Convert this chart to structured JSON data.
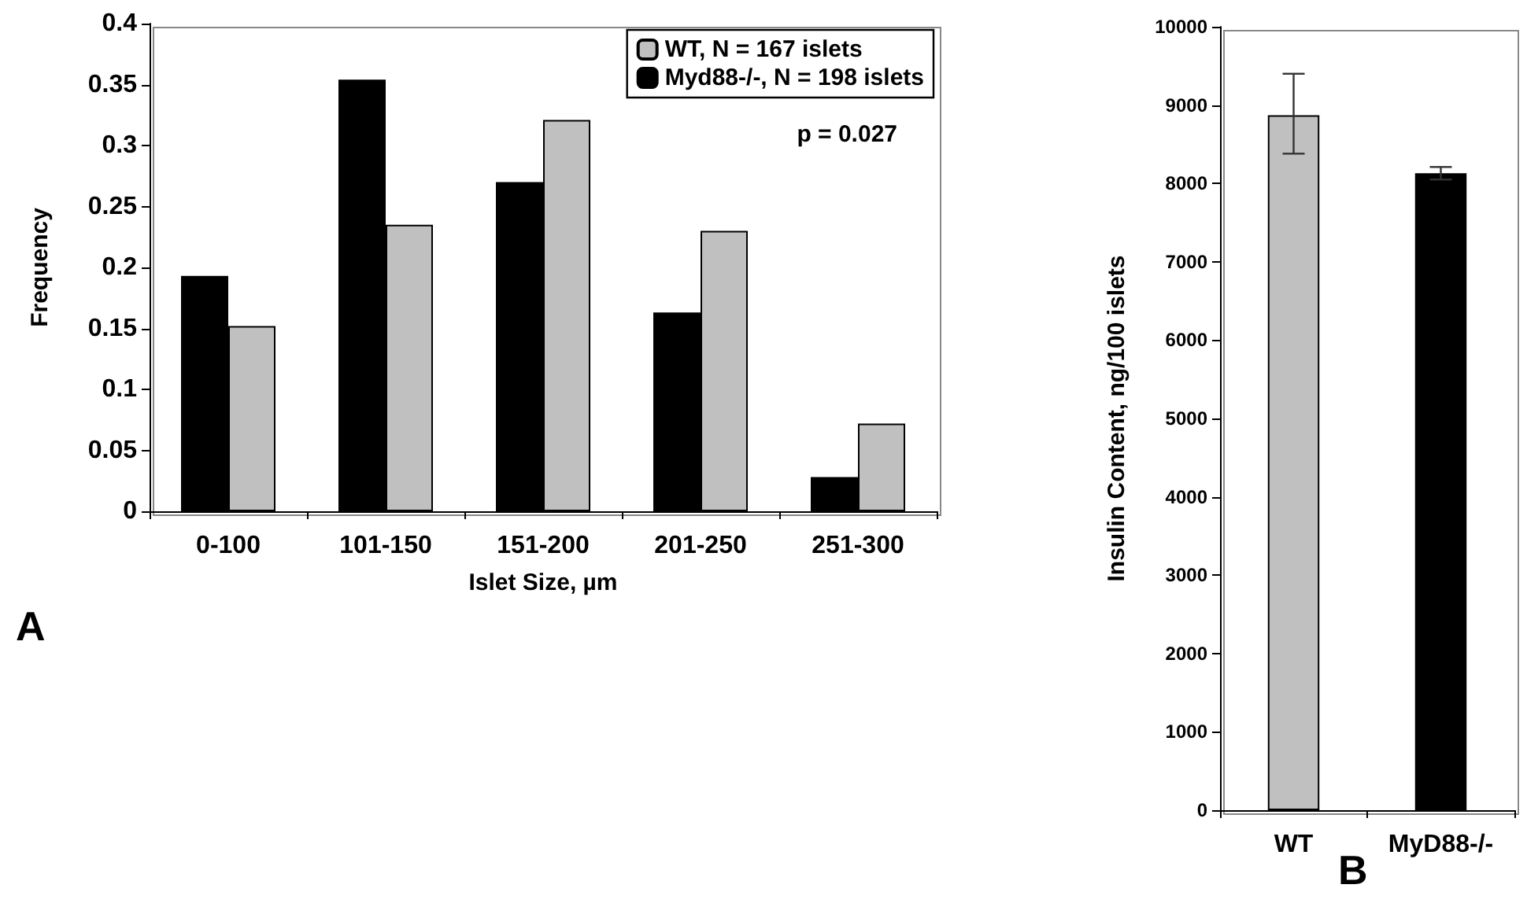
{
  "chart_data": [
    {
      "type": "bar",
      "xlabel": "Islet Size, µm",
      "ylabel": "Frequency",
      "categories": [
        "0-100",
        "101-150",
        "151-200",
        "201-250",
        "251-300"
      ],
      "series": [
        {
          "name": "WT, N = 167 islets",
          "color": "#c0c0c0",
          "values": [
            0.152,
            0.235,
            0.321,
            0.23,
            0.072
          ]
        },
        {
          "name": "Myd88-/-, N = 198 islets",
          "color": "#000000",
          "values": [
            0.193,
            0.354,
            0.27,
            0.163,
            0.028
          ]
        }
      ],
      "ylim": [
        0,
        0.4
      ],
      "yticks": [
        0,
        0.05,
        0.1,
        0.15,
        0.2,
        0.25,
        0.3,
        0.35,
        0.4
      ],
      "grid": false,
      "legend": "top right",
      "annotations": [
        "p = 0.027",
        "A"
      ]
    },
    {
      "type": "bar",
      "ylabel": "Insulin Content, ng/100 islets",
      "categories": [
        "WT",
        "MyD88-/-"
      ],
      "values": [
        8870,
        8130
      ],
      "colors": [
        "#c0c0c0",
        "#000000"
      ],
      "errors": [
        [
          8380,
          9400
        ],
        [
          8050,
          8210
        ]
      ],
      "ylim": [
        0,
        10000
      ],
      "yticks": [
        0,
        1000,
        2000,
        3000,
        4000,
        5000,
        6000,
        7000,
        8000,
        9000,
        10000
      ],
      "grid": false,
      "annotations": [
        "B"
      ]
    }
  ]
}
